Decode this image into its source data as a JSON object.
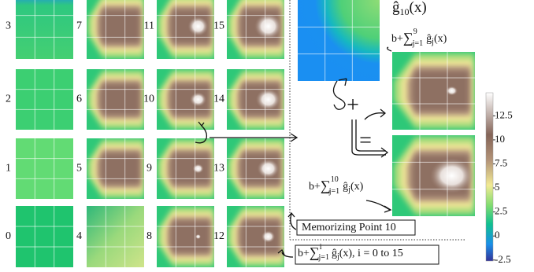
{
  "panel_labels": [
    "0",
    "1",
    "2",
    "3",
    "4",
    "5",
    "6",
    "7",
    "8",
    "9",
    "10",
    "11",
    "12",
    "13",
    "14",
    "15"
  ],
  "g10_label": {
    "g": "ĝ",
    "sub": "10",
    "arg": "(x)"
  },
  "sum9": {
    "b": "b+",
    "sum": "∑",
    "sup": "9",
    "sub": "j=1",
    "g": "ĝ",
    "gsub": "j",
    "arg": "(x)"
  },
  "sum10": {
    "b": "b+",
    "sum": "∑",
    "sup": "10",
    "sub": "j=1",
    "g": "ĝ",
    "gsub": "j",
    "arg": "(x)"
  },
  "plus": "+",
  "equals": "=",
  "memorizing": "Memorizing Point 10",
  "sum_i": {
    "b": "b+",
    "sum": "∑",
    "sup": "i",
    "sub": "j=1",
    "g": "ĝ",
    "gsub": "j",
    "arg": "(x), i = 0 to 15"
  },
  "colorbar": {
    "ylim": [
      -2.6,
      14.9
    ],
    "yticks": [
      -2.5,
      0,
      2.5,
      5,
      7.5,
      10,
      12.5
    ]
  }
}
